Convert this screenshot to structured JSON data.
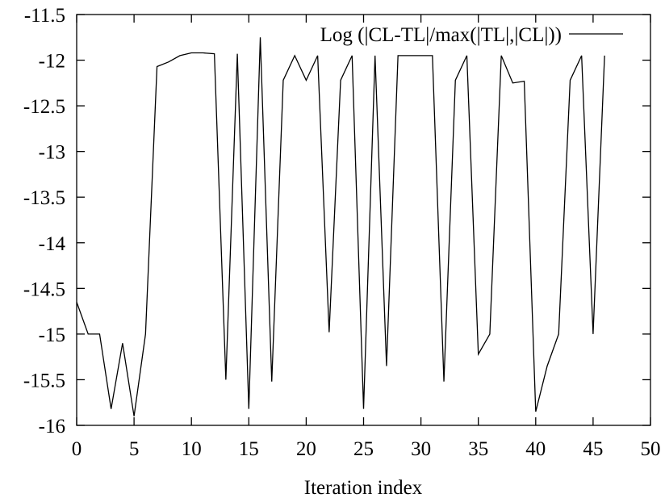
{
  "chart_data": {
    "type": "line",
    "xlabel": "Iteration index",
    "ylabel": "",
    "xlim": [
      0,
      50
    ],
    "ylim": [
      -16,
      -11.5
    ],
    "xticks": [
      "0",
      "5",
      "10",
      "15",
      "20",
      "25",
      "30",
      "35",
      "40",
      "45",
      "50"
    ],
    "yticks": [
      "-11.5",
      "-12",
      "-12.5",
      "-13",
      "-13.5",
      "-14",
      "-14.5",
      "-15",
      "-15.5",
      "-16"
    ],
    "grid": false,
    "legend_position": "top-right",
    "series": [
      {
        "name": "Log (|CL-TL|/max(|TL|,|CL|))",
        "color": "#000000",
        "x": [
          0,
          1,
          2,
          3,
          4,
          5,
          6,
          7,
          8,
          9,
          10,
          11,
          12,
          13,
          14,
          15,
          16,
          17,
          18,
          19,
          20,
          21,
          22,
          23,
          24,
          25,
          26,
          27,
          28,
          29,
          30,
          31,
          32,
          33,
          34,
          35,
          36,
          37,
          38,
          39,
          40,
          41,
          42,
          43,
          44,
          45,
          46
        ],
        "y": [
          -14.65,
          -15.0,
          -15.0,
          -15.82,
          -15.1,
          -15.9,
          -15.0,
          -12.07,
          -12.02,
          -11.95,
          -11.92,
          -11.92,
          -11.93,
          -15.5,
          -11.93,
          -15.82,
          -11.75,
          -15.52,
          -12.22,
          -11.95,
          -12.22,
          -11.95,
          -14.98,
          -12.22,
          -11.95,
          -15.82,
          -11.95,
          -15.35,
          -11.95,
          -11.95,
          -11.95,
          -11.95,
          -15.52,
          -12.22,
          -11.95,
          -15.22,
          -15.0,
          -11.95,
          -12.25,
          -12.23,
          -15.85,
          -15.35,
          -15.0,
          -12.22,
          -11.95,
          -15.0,
          -11.95
        ]
      }
    ]
  }
}
